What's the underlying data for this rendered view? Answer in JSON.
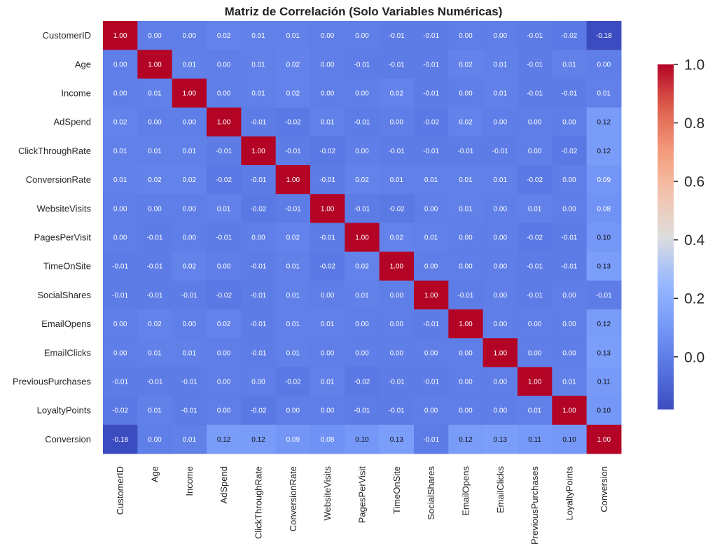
{
  "chart_data": {
    "type": "heatmap",
    "title": "Matriz de Correlación (Solo Variables Numéricas)",
    "row_labels": [
      "CustomerID",
      "Age",
      "Income",
      "AdSpend",
      "ClickThroughRate",
      "ConversionRate",
      "WebsiteVisits",
      "PagesPerVisit",
      "TimeOnSite",
      "SocialShares",
      "EmailOpens",
      "EmailClicks",
      "PreviousPurchases",
      "LoyaltyPoints",
      "Conversion"
    ],
    "col_labels": [
      "CustomerID",
      "Age",
      "Income",
      "AdSpend",
      "ClickThroughRate",
      "ConversionRate",
      "WebsiteVisits",
      "PagesPerVisit",
      "TimeOnSite",
      "SocialShares",
      "EmailOpens",
      "EmailClicks",
      "PreviousPurchases",
      "LoyaltyPoints",
      "Conversion"
    ],
    "values": [
      [
        1.0,
        -0.0,
        0.0,
        0.02,
        0.01,
        0.01,
        0.0,
        0.0,
        -0.01,
        -0.01,
        -0.0,
        -0.0,
        -0.01,
        -0.02,
        -0.18
      ],
      [
        -0.0,
        1.0,
        0.01,
        -0.0,
        0.01,
        0.02,
        -0.0,
        -0.01,
        -0.01,
        -0.01,
        0.02,
        0.01,
        -0.01,
        0.01,
        0.0
      ],
      [
        0.0,
        0.01,
        1.0,
        0.0,
        0.01,
        0.02,
        -0.0,
        0.0,
        0.02,
        -0.01,
        -0.0,
        0.01,
        -0.01,
        -0.01,
        0.01
      ],
      [
        0.02,
        -0.0,
        0.0,
        1.0,
        -0.01,
        -0.02,
        0.01,
        -0.01,
        -0.0,
        -0.02,
        0.02,
        0.0,
        0.0,
        0.0,
        0.12
      ],
      [
        0.01,
        0.01,
        0.01,
        -0.01,
        1.0,
        -0.01,
        -0.02,
        0.0,
        -0.01,
        -0.01,
        -0.01,
        -0.01,
        -0.0,
        -0.02,
        0.12
      ],
      [
        0.01,
        0.02,
        0.02,
        -0.02,
        -0.01,
        1.0,
        -0.01,
        0.02,
        0.01,
        0.01,
        0.01,
        0.01,
        -0.02,
        -0.0,
        0.09
      ],
      [
        0.0,
        -0.0,
        -0.0,
        0.01,
        -0.02,
        -0.01,
        1.0,
        -0.01,
        -0.02,
        0.0,
        0.01,
        0.0,
        0.01,
        0.0,
        0.08
      ],
      [
        0.0,
        -0.01,
        0.0,
        -0.01,
        0.0,
        0.02,
        -0.01,
        1.0,
        0.02,
        0.01,
        0.0,
        -0.0,
        -0.02,
        -0.01,
        0.1
      ],
      [
        -0.01,
        -0.01,
        0.02,
        -0.0,
        -0.01,
        0.01,
        -0.02,
        0.02,
        1.0,
        0.0,
        -0.0,
        0.0,
        -0.01,
        -0.01,
        0.13
      ],
      [
        -0.01,
        -0.01,
        -0.01,
        -0.02,
        -0.01,
        0.01,
        0.0,
        0.01,
        0.0,
        1.0,
        -0.01,
        0.0,
        -0.01,
        -0.0,
        -0.01
      ],
      [
        -0.0,
        0.02,
        -0.0,
        0.02,
        -0.01,
        0.01,
        0.01,
        0.0,
        -0.0,
        -0.01,
        1.0,
        0.0,
        0.0,
        -0.0,
        0.12
      ],
      [
        -0.0,
        0.01,
        0.01,
        0.0,
        -0.01,
        0.01,
        0.0,
        -0.0,
        0.0,
        0.0,
        0.0,
        1.0,
        0.0,
        -0.0,
        0.13
      ],
      [
        -0.01,
        -0.01,
        -0.01,
        0.0,
        -0.0,
        -0.02,
        0.01,
        -0.02,
        -0.01,
        -0.01,
        0.0,
        0.0,
        1.0,
        0.01,
        0.11
      ],
      [
        -0.02,
        0.01,
        -0.01,
        0.0,
        -0.02,
        -0.0,
        0.0,
        -0.01,
        -0.01,
        -0.0,
        -0.0,
        -0.0,
        0.01,
        1.0,
        0.1
      ],
      [
        -0.18,
        0.0,
        0.01,
        0.12,
        0.12,
        0.09,
        0.08,
        0.1,
        0.13,
        -0.01,
        0.12,
        0.13,
        0.11,
        0.1,
        1.0
      ]
    ],
    "colormap": "coolwarm",
    "vmin": -0.18,
    "vmax": 1.0,
    "colorbar_ticks": [
      "0.0",
      "0.2",
      "0.4",
      "0.6",
      "0.8",
      "1.0"
    ],
    "annotations": true,
    "legend": "colorbar-right"
  }
}
